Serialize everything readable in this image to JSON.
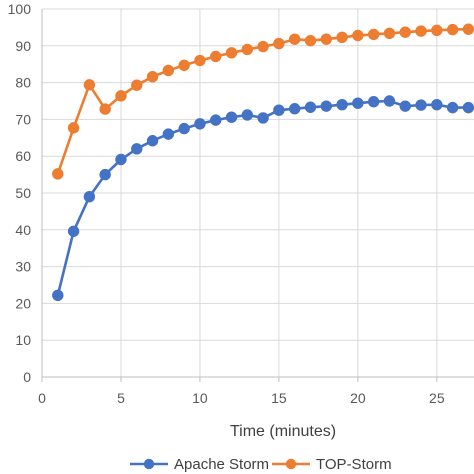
{
  "colors": {
    "apache_storm": "#4472C4",
    "top_storm": "#ED7D31",
    "grid": "#D9D9D9",
    "axis": "#BFBFBF"
  },
  "chart_data": {
    "type": "line",
    "title": "",
    "xlabel": "Time (minutes)",
    "ylabel": "",
    "xlim": [
      0,
      27
    ],
    "ylim": [
      0,
      100
    ],
    "x_ticks": [
      0,
      5,
      10,
      15,
      20,
      25
    ],
    "y_ticks": [
      0,
      10,
      20,
      30,
      40,
      50,
      60,
      70,
      80,
      90,
      100
    ],
    "grid": true,
    "legend_position": "bottom",
    "x": [
      1,
      2,
      3,
      4,
      5,
      6,
      7,
      8,
      9,
      10,
      11,
      12,
      13,
      14,
      15,
      16,
      17,
      18,
      19,
      20,
      21,
      22,
      23,
      24,
      25,
      26,
      27
    ],
    "series": [
      {
        "name": "Apache Storm",
        "color": "#4472C4",
        "values": [
          22.2,
          39.6,
          49.0,
          55.0,
          59.1,
          62.0,
          64.2,
          66.0,
          67.5,
          68.8,
          69.8,
          70.6,
          71.2,
          70.4,
          72.5,
          72.9,
          73.3,
          73.6,
          74.0,
          74.4,
          74.8,
          75.0,
          73.6,
          73.9,
          74.0,
          73.2,
          73.2
        ]
      },
      {
        "name": "TOP-Storm",
        "color": "#ED7D31",
        "values": [
          55.2,
          67.7,
          79.4,
          72.8,
          76.4,
          79.3,
          81.6,
          83.3,
          84.7,
          86.0,
          87.1,
          88.1,
          89.0,
          89.8,
          90.6,
          91.8,
          91.4,
          91.8,
          92.3,
          92.8,
          93.1,
          93.4,
          93.7,
          94.0,
          94.2,
          94.4,
          94.5
        ]
      }
    ]
  }
}
